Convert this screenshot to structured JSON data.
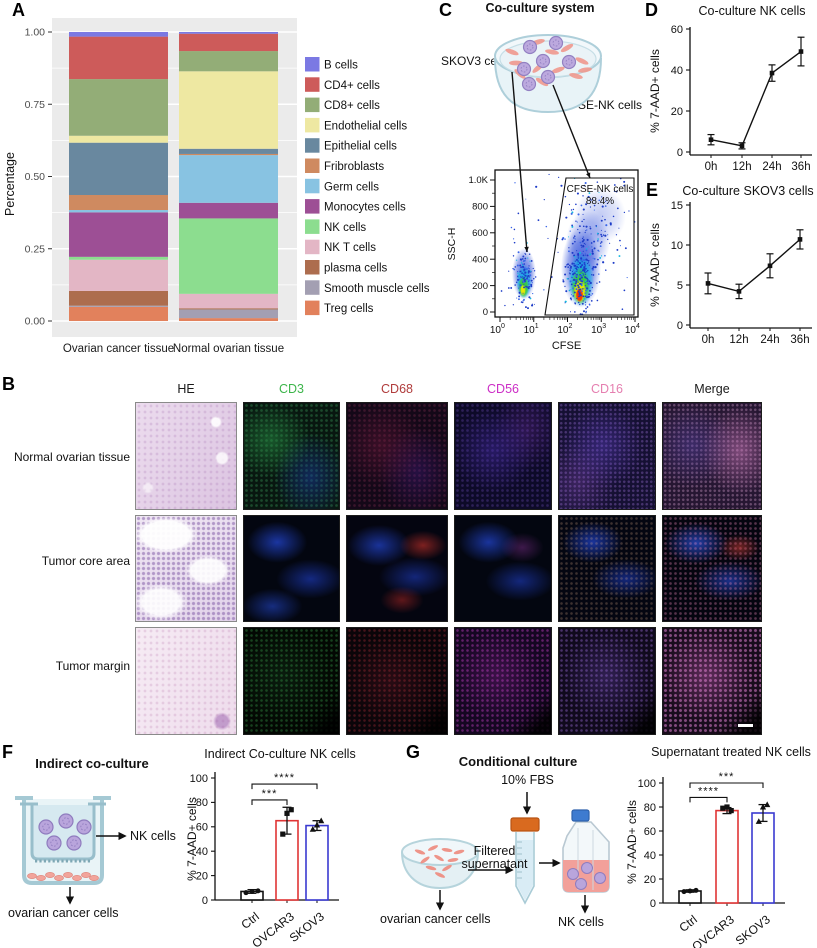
{
  "panels": {
    "a": "A",
    "b": "B",
    "c": "C",
    "d": "D",
    "e": "E",
    "f": "F",
    "g": "G"
  },
  "panel_b": {
    "columns": [
      {
        "label": "HE",
        "color": "#1a1a1a"
      },
      {
        "label": "CD3",
        "color": "#3db54b"
      },
      {
        "label": "CD68",
        "color": "#b03c3c"
      },
      {
        "label": "CD56",
        "color": "#cc2ec6"
      },
      {
        "label": "CD16",
        "color": "#e57fb0"
      },
      {
        "label": "Merge",
        "color": "#1a1a1a"
      }
    ],
    "rows": [
      {
        "label": "Normal ovarian tissue"
      },
      {
        "label": "Tumor core area"
      },
      {
        "label": "Tumor margin"
      }
    ]
  },
  "panel_c": {
    "title": "Co-culture system",
    "skov3_label": "SKOV3 cells",
    "cfse_nk_label": "CFSE-NK cells"
  },
  "panel_f": {
    "diagram_title": "Indirect co-culture",
    "nk_label": "NK cells",
    "cancer_label": "ovarian cancer cells"
  },
  "panel_g": {
    "diagram_title": "Conditional culture",
    "fbs_label": "10% FBS",
    "supernatant_line1": "Filtered",
    "supernatant_line2": "supernatant",
    "nk_label": "NK cells",
    "cancer_label": "ovarian cancer cells"
  },
  "chart_data": [
    {
      "id": "cell-composition",
      "type": "bar",
      "stacked": true,
      "title": "",
      "ylabel": "Percentage",
      "categories": [
        "Ovarian cancer tissue",
        "Normal ovarian tissue"
      ],
      "yticks": [
        0,
        0.25,
        0.5,
        0.75,
        1.0
      ],
      "ylim": [
        0,
        1
      ],
      "legend_position": "right",
      "series": [
        {
          "name": "B cells",
          "color": "#7b79e3",
          "values": [
            0.016,
            0.006
          ]
        },
        {
          "name": "CD4+ cells",
          "color": "#cd5b5a",
          "values": [
            0.147,
            0.06
          ]
        },
        {
          "name": "CD8+ cells",
          "color": "#93ad77",
          "values": [
            0.196,
            0.07
          ]
        },
        {
          "name": "Endothelial cells",
          "color": "#eee8a2",
          "values": [
            0.024,
            0.268
          ]
        },
        {
          "name": "Epithelial cells",
          "color": "#69889f",
          "values": [
            0.181,
            0.018
          ]
        },
        {
          "name": "Fribroblasts",
          "color": "#cf8a60",
          "values": [
            0.052,
            0.004
          ]
        },
        {
          "name": "Germ cells",
          "color": "#88c3e2",
          "values": [
            0.008,
            0.165
          ]
        },
        {
          "name": "Monocytes cells",
          "color": "#9d4f95",
          "values": [
            0.154,
            0.054
          ]
        },
        {
          "name": "NK cells",
          "color": "#8cdd8f",
          "values": [
            0.01,
            0.261
          ]
        },
        {
          "name": "NK T cells",
          "color": "#e3b6c5",
          "values": [
            0.108,
            0.05
          ]
        },
        {
          "name": "plasma cells",
          "color": "#ad6d4e",
          "values": [
            0.051,
            0.004
          ]
        },
        {
          "name": "Smooth muscle cells",
          "color": "#a39fb2",
          "values": [
            0.004,
            0.03
          ]
        },
        {
          "name": "Treg cells",
          "color": "#e2815c",
          "values": [
            0.049,
            0.01
          ]
        }
      ]
    },
    {
      "id": "flow-cfse",
      "type": "scatter",
      "subtype": "flow-cytometry-density",
      "xlabel": "CFSE",
      "ylabel": "SSC-H",
      "x_scale": "log10",
      "xtick_exponents": [
        0,
        1,
        2,
        3,
        4
      ],
      "yticks": [
        "0",
        "200",
        "400",
        "600",
        "800",
        "1.0K"
      ],
      "ylim": [
        0,
        1000
      ],
      "gate_label": "CFSE-NK cells",
      "gate_value": "88.4%",
      "populations": [
        {
          "name": "SKOV3 cells",
          "cx_decade": 0.7,
          "cy_ssc": 160,
          "note": "ungated low-CFSE population"
        },
        {
          "name": "CFSE-NK cells",
          "cx_decade": 2.4,
          "cy_ssc": 180,
          "note": "gated CFSE+ population, 88.4%"
        }
      ]
    },
    {
      "id": "nk-timecourse",
      "type": "line",
      "title": "Co-culture NK cells",
      "ylabel": "% 7-AAD+ cells",
      "categories": [
        "0h",
        "12h",
        "24h",
        "36h"
      ],
      "values": [
        6,
        3,
        38.5,
        49
      ],
      "errors": [
        2.5,
        1.5,
        4,
        7
      ],
      "ylim": [
        0,
        60
      ],
      "yticks": [
        0,
        20,
        40,
        60
      ]
    },
    {
      "id": "skov3-timecourse",
      "type": "line",
      "title": "Co-culture SKOV3 cells",
      "ylabel": "% 7-AAD+ cells",
      "categories": [
        "0h",
        "12h",
        "24h",
        "36h"
      ],
      "values": [
        5.2,
        4.2,
        7.4,
        10.7
      ],
      "errors": [
        1.3,
        0.9,
        1.5,
        1.2
      ],
      "ylim": [
        0,
        15
      ],
      "yticks": [
        0,
        5,
        10,
        15
      ]
    },
    {
      "id": "indirect-coculture",
      "type": "bar",
      "title": "Indirect Co-culture NK cells",
      "ylabel": "% 7-AAD+ cells",
      "categories": [
        "Ctrl",
        "OVCAR3",
        "SKOV3"
      ],
      "values": [
        7,
        65,
        61
      ],
      "errors": [
        1.5,
        11,
        4
      ],
      "bar_colors": [
        "#111111",
        "#e03535",
        "#3a3ad0"
      ],
      "points": [
        [
          6,
          7,
          7.5
        ],
        [
          54,
          71,
          74
        ],
        [
          58,
          61.5,
          65
        ]
      ],
      "point_markers": [
        "circle",
        "square",
        "triangle"
      ],
      "ylim": [
        0,
        100
      ],
      "yticks": [
        0,
        20,
        40,
        60,
        80,
        100
      ],
      "significance": [
        {
          "from": 0,
          "to": 1,
          "label": "***",
          "height": 82
        },
        {
          "from": 0,
          "to": 2,
          "label": "****",
          "height": 95
        }
      ]
    },
    {
      "id": "supernatant-treated",
      "type": "bar",
      "title": "Supernatant treated NK cells",
      "ylabel": "% 7-AAD+ cells",
      "categories": [
        "Ctrl",
        "OVCAR3",
        "SKOV3"
      ],
      "values": [
        10,
        77,
        75
      ],
      "errors": [
        1,
        2.5,
        7
      ],
      "bar_colors": [
        "#111111",
        "#e03535",
        "#3a3ad0"
      ],
      "points": [
        [
          9.5,
          10,
          10.5
        ],
        [
          79,
          80,
          77
        ],
        [
          68,
          80,
          82
        ]
      ],
      "point_markers": [
        "circle",
        "square",
        "triangle"
      ],
      "ylim": [
        0,
        100
      ],
      "yticks": [
        0,
        20,
        40,
        60,
        80,
        100
      ],
      "significance": [
        {
          "from": 0,
          "to": 1,
          "label": "****",
          "height": 88
        },
        {
          "from": 0,
          "to": 2,
          "label": "***",
          "height": 100
        }
      ]
    }
  ]
}
